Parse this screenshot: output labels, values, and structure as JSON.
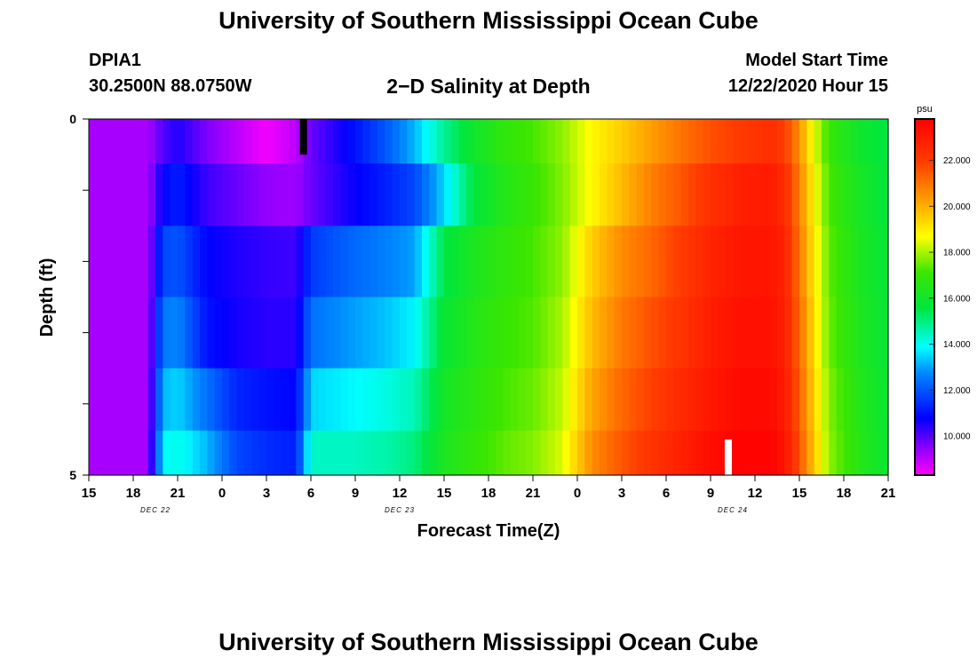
{
  "header": {
    "title_top": "University of Southern Mississippi Ocean Cube",
    "title_bottom": "University of Southern Mississippi Ocean Cube",
    "station_id": "DPIA1",
    "station_coords": "30.2500N 88.0750W",
    "model_start_label": "Model Start Time",
    "model_start_value": "12/22/2020 Hour 15"
  },
  "chart_data": {
    "type": "heatmap",
    "title": "2−D Salinity at Depth",
    "xlabel": "Forecast Time(Z)",
    "ylabel": "Depth (ft)",
    "x_tick_labels": [
      "15",
      "18",
      "21",
      "0",
      "3",
      "6",
      "9",
      "12",
      "15",
      "18",
      "21",
      "0",
      "3",
      "6",
      "9",
      "12",
      "15",
      "18",
      "21"
    ],
    "x_range_hours": [
      0,
      54
    ],
    "date_labels": [
      {
        "text": "DEC 22",
        "hour": 4.5
      },
      {
        "text": "DEC 23",
        "hour": 21
      },
      {
        "text": "DEC 24",
        "hour": 43.5
      }
    ],
    "y_tick_labels": [
      "0",
      "5"
    ],
    "y_range": [
      0,
      5
    ],
    "colorbar": {
      "unit": "psu",
      "min": 8.3,
      "max": 23.8,
      "ticks": [
        "10.000",
        "12.000",
        "14.000",
        "16.000",
        "18.000",
        "20.000",
        "22.000"
      ],
      "tick_values": [
        10,
        12,
        14,
        16,
        18,
        20,
        22
      ]
    },
    "depth_layers": [
      0.25,
      1.0,
      2.0,
      3.0,
      4.0,
      4.75
    ],
    "keyframes_hours": [
      0,
      4,
      5,
      6,
      8,
      10,
      12,
      14,
      15,
      17.5,
      20,
      22,
      24,
      26,
      28,
      30,
      32,
      34,
      36,
      38,
      40,
      42,
      44,
      46,
      47,
      48,
      49,
      50,
      52,
      54
    ],
    "salinity_keyframes": [
      [
        9.2,
        9.2,
        10.0,
        10.5,
        9.6,
        9.0,
        8.4,
        9.0,
        9.8,
        10.8,
        12.0,
        13.2,
        14.8,
        16.0,
        16.8,
        17.2,
        17.8,
        18.8,
        19.5,
        20.3,
        21.0,
        21.6,
        22.0,
        22.4,
        22.0,
        20.5,
        18.5,
        17.0,
        16.0,
        15.5
      ],
      [
        9.2,
        9.2,
        10.8,
        11.2,
        10.2,
        9.8,
        9.4,
        9.3,
        9.8,
        10.6,
        11.2,
        11.8,
        13.5,
        15.6,
        16.5,
        17.0,
        17.7,
        18.8,
        19.8,
        20.8,
        21.5,
        22.3,
        22.8,
        23.0,
        22.5,
        20.8,
        18.8,
        17.2,
        16.2,
        15.6
      ],
      [
        9.2,
        9.2,
        11.8,
        12.0,
        10.8,
        10.5,
        10.3,
        10.2,
        11.6,
        12.2,
        12.6,
        13.0,
        15.5,
        16.3,
        16.8,
        17.2,
        17.8,
        19.5,
        20.6,
        21.2,
        22.0,
        22.7,
        23.1,
        23.2,
        22.7,
        21.0,
        19.0,
        17.4,
        16.3,
        15.7
      ],
      [
        9.2,
        9.2,
        12.5,
        12.7,
        11.0,
        10.6,
        10.4,
        10.4,
        12.4,
        12.9,
        13.3,
        13.8,
        15.8,
        16.5,
        17.0,
        17.3,
        18.0,
        19.8,
        20.9,
        21.6,
        22.2,
        22.9,
        23.3,
        23.3,
        22.8,
        21.2,
        19.2,
        17.5,
        16.4,
        15.7
      ],
      [
        9.2,
        9.2,
        13.2,
        13.5,
        12.4,
        11.3,
        11.0,
        10.8,
        13.5,
        13.8,
        14.1,
        14.5,
        16.1,
        16.7,
        17.2,
        17.5,
        18.2,
        20.2,
        21.2,
        21.9,
        22.5,
        23.1,
        23.5,
        23.5,
        23.0,
        21.4,
        19.4,
        17.7,
        16.5,
        15.8
      ],
      [
        9.2,
        9.2,
        13.8,
        14.1,
        13.2,
        11.8,
        11.4,
        11.2,
        14.4,
        14.4,
        14.6,
        15.0,
        16.3,
        16.9,
        17.4,
        17.7,
        18.4,
        20.6,
        21.5,
        22.2,
        22.8,
        23.4,
        23.7,
        23.7,
        23.2,
        21.6,
        19.6,
        17.8,
        16.6,
        15.8
      ]
    ],
    "annotations": [
      {
        "type": "black-bar",
        "hour": 14.5,
        "depth_top": 0,
        "depth_bottom": 0.5
      },
      {
        "type": "white-bar",
        "hour": 43.2,
        "depth_top": 4.5,
        "depth_bottom": 5
      }
    ]
  }
}
